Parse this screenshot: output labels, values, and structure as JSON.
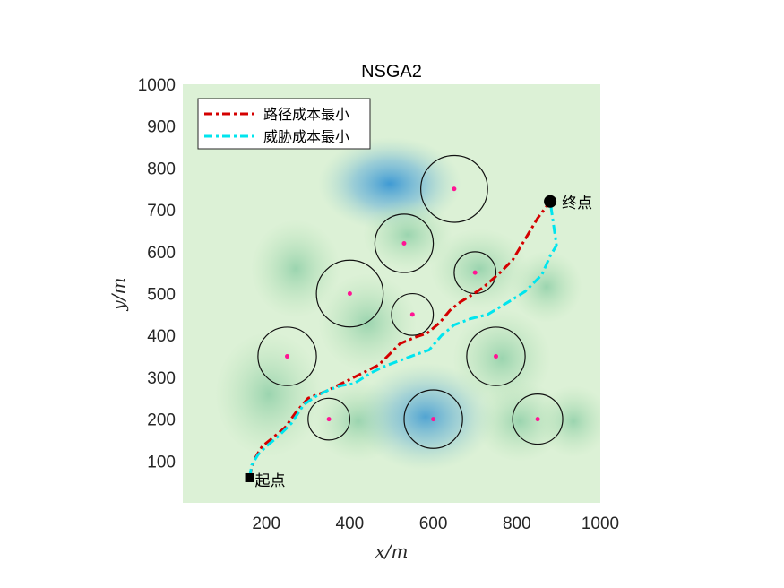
{
  "chart_data": {
    "type": "line",
    "title": "NSGA2",
    "xlabel": "x/m",
    "ylabel": "y/m",
    "xlim": [
      0,
      1000
    ],
    "ylim": [
      0,
      1000
    ],
    "xticks": [
      200,
      400,
      600,
      800,
      1000
    ],
    "yticks": [
      100,
      200,
      300,
      400,
      500,
      600,
      700,
      800,
      900,
      1000
    ],
    "legend_position": "top-left",
    "background": "threat heatmap (green/blue)",
    "series": [
      {
        "name": "路径成本最小",
        "color": "#d40000",
        "style": "dash-dot",
        "x": [
          160,
          165,
          175,
          190,
          215,
          245,
          270,
          300,
          340,
          380,
          420,
          470,
          520,
          555,
          585,
          615,
          640,
          665,
          690,
          720,
          760,
          790,
          820,
          850,
          880
        ],
        "y": [
          60,
          85,
          110,
          135,
          155,
          180,
          215,
          250,
          265,
          285,
          305,
          330,
          380,
          395,
          405,
          430,
          460,
          480,
          495,
          515,
          550,
          580,
          630,
          680,
          720
        ]
      },
      {
        "name": "威胁成本最小",
        "color": "#00e5ee",
        "style": "dash-dot",
        "x": [
          160,
          165,
          180,
          200,
          230,
          260,
          290,
          320,
          350,
          380,
          410,
          450,
          480,
          520,
          560,
          590,
          620,
          650,
          690,
          730,
          780,
          820,
          860,
          880,
          895,
          880
        ],
        "y": [
          60,
          90,
          115,
          135,
          160,
          190,
          235,
          255,
          270,
          280,
          285,
          310,
          325,
          340,
          355,
          365,
          400,
          425,
          440,
          450,
          480,
          505,
          545,
          590,
          615,
          720
        ]
      }
    ],
    "threats": [
      {
        "cx": 650,
        "cy": 750,
        "r": 80
      },
      {
        "cx": 530,
        "cy": 620,
        "r": 70
      },
      {
        "cx": 700,
        "cy": 550,
        "r": 50
      },
      {
        "cx": 400,
        "cy": 500,
        "r": 80
      },
      {
        "cx": 550,
        "cy": 450,
        "r": 50
      },
      {
        "cx": 250,
        "cy": 350,
        "r": 70
      },
      {
        "cx": 750,
        "cy": 350,
        "r": 70
      },
      {
        "cx": 350,
        "cy": 200,
        "r": 50
      },
      {
        "cx": 600,
        "cy": 200,
        "r": 70
      },
      {
        "cx": 850,
        "cy": 200,
        "r": 60
      }
    ],
    "start": {
      "x": 160,
      "y": 60,
      "label": "起点"
    },
    "end": {
      "x": 880,
      "y": 720,
      "label": "终点"
    }
  }
}
